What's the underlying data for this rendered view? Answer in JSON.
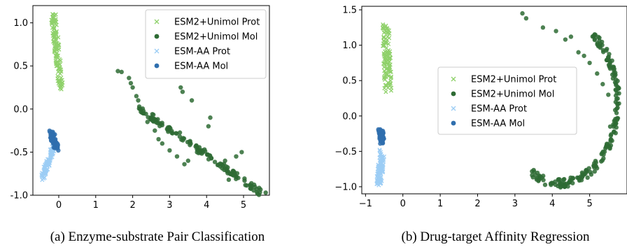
{
  "colors": {
    "esm2_prot": "#8fd16a",
    "esm2_mol": "#2e6b34",
    "esmaa_prot": "#9ccdf5",
    "esmaa_mol": "#2f6fae"
  },
  "chart_data": [
    {
      "type": "scatter",
      "caption": "(a) Enzyme-substrate Pair Classification",
      "xlim": [
        -0.7,
        5.7
      ],
      "ylim": [
        -1.0,
        1.2
      ],
      "xticks": [
        "0",
        "1",
        "2",
        "3",
        "4",
        "5"
      ],
      "yticks": [
        "1.0",
        "0.5",
        "0.0",
        "-0.5",
        "-1.0"
      ],
      "legend_position": "top-right",
      "legend": [
        "ESM2+Unimol Prot",
        "ESM2+Unimol Mol",
        "ESM-AA Prot",
        "ESM-AA Mol"
      ],
      "series": [
        {
          "name": "ESM2+Unimol Prot",
          "marker": "x",
          "color": "#8fd16a",
          "clusters": [
            {
              "from": [
                -0.15,
                1.1
              ],
              "to": [
                0.05,
                0.25
              ],
              "width": 0.14,
              "n": 120
            }
          ]
        },
        {
          "name": "ESM2+Unimol Mol",
          "marker": "o",
          "color": "#2e6b34",
          "points": [
            [
              1.6,
              0.44
            ],
            [
              1.7,
              0.43
            ],
            [
              1.9,
              0.36
            ],
            [
              1.95,
              0.3
            ],
            [
              2.0,
              0.25
            ],
            [
              2.1,
              0.15
            ],
            [
              2.15,
              0.1
            ],
            [
              2.2,
              0.0
            ],
            [
              2.3,
              -0.05
            ],
            [
              2.4,
              -0.15
            ],
            [
              2.6,
              -0.25
            ],
            [
              2.7,
              -0.35
            ],
            [
              2.8,
              -0.4
            ],
            [
              3.0,
              -0.48
            ],
            [
              3.2,
              -0.55
            ],
            [
              3.5,
              -0.6
            ],
            [
              3.3,
              0.25
            ],
            [
              3.35,
              0.2
            ],
            [
              3.6,
              0.1
            ],
            [
              4.1,
              -0.1
            ],
            [
              4.05,
              -0.2
            ],
            [
              4.3,
              -0.65
            ],
            [
              4.5,
              -0.6
            ],
            [
              4.8,
              -0.55
            ],
            [
              4.95,
              -0.5
            ],
            [
              5.6,
              -0.97
            ],
            [
              3.4,
              -0.64
            ],
            [
              4.55,
              -0.7
            ],
            [
              4.7,
              -0.75
            ],
            [
              4.6,
              -0.82
            ]
          ],
          "clusters": [
            {
              "from": [
                2.2,
                0.0
              ],
              "to": [
                5.5,
                -0.98
              ],
              "width": 0.12,
              "n": 140
            }
          ]
        },
        {
          "name": "ESM-AA Prot",
          "marker": "x",
          "color": "#9ccdf5",
          "clusters": [
            {
              "from": [
                -0.15,
                -0.45
              ],
              "to": [
                -0.45,
                -0.8
              ],
              "width": 0.1,
              "n": 90
            }
          ]
        },
        {
          "name": "ESM-AA Mol",
          "marker": "o",
          "color": "#2f6fae",
          "clusters": [
            {
              "from": [
                -0.2,
                -0.28
              ],
              "to": [
                -0.05,
                -0.45
              ],
              "width": 0.12,
              "n": 60
            }
          ]
        }
      ]
    },
    {
      "type": "scatter",
      "caption": "(b) Drug-target Affinity Regression",
      "xlim": [
        -1.1,
        6.0
      ],
      "ylim": [
        -1.1,
        1.55
      ],
      "xticks": [
        "−1",
        "0",
        "1",
        "2",
        "3",
        "4",
        "5"
      ],
      "yticks": [
        "1.5",
        "1.0",
        "0.5",
        "0.0",
        "−0.5",
        "−1.0"
      ],
      "legend_position": "center",
      "legend": [
        "ESM2+Unimol Prot",
        "ESM2+Unimol Mol",
        "ESM-AA Prot",
        "ESM-AA Mol"
      ],
      "series": [
        {
          "name": "ESM2+Unimol Prot",
          "marker": "x",
          "color": "#8fd16a",
          "clusters": [
            {
              "from": [
                -0.45,
                1.28
              ],
              "to": [
                -0.4,
                0.35
              ],
              "width": 0.2,
              "n": 110
            }
          ]
        },
        {
          "name": "ESM2+Unimol Mol",
          "marker": "o",
          "color": "#2e6b34",
          "points": [
            [
              3.2,
              1.45
            ],
            [
              3.3,
              1.38
            ],
            [
              3.75,
              1.25
            ],
            [
              4.1,
              1.2
            ],
            [
              4.5,
              1.12
            ],
            [
              4.7,
              0.9
            ],
            [
              4.85,
              0.85
            ],
            [
              5.0,
              0.75
            ],
            [
              5.2,
              0.6
            ],
            [
              5.35,
              0.45
            ],
            [
              5.5,
              0.3
            ],
            [
              4.35,
              1.08
            ],
            [
              5.55,
              -0.15
            ],
            [
              5.6,
              -0.35
            ],
            [
              5.15,
              -0.7
            ],
            [
              4.8,
              -0.8
            ],
            [
              4.3,
              -0.9
            ]
          ],
          "arc": {
            "center": [
              4.2,
              0.2
            ],
            "rx": 1.55,
            "ry": 1.15,
            "from_deg": 55,
            "to_deg": -120,
            "n": 200
          }
        },
        {
          "name": "ESM-AA Prot",
          "marker": "x",
          "color": "#9ccdf5",
          "clusters": [
            {
              "from": [
                -0.55,
                -0.5
              ],
              "to": [
                -0.65,
                -0.95
              ],
              "width": 0.15,
              "n": 90
            }
          ]
        },
        {
          "name": "ESM-AA Mol",
          "marker": "o",
          "color": "#2f6fae",
          "clusters": [
            {
              "from": [
                -0.6,
                -0.2
              ],
              "to": [
                -0.55,
                -0.38
              ],
              "width": 0.12,
              "n": 60
            }
          ]
        }
      ]
    }
  ]
}
